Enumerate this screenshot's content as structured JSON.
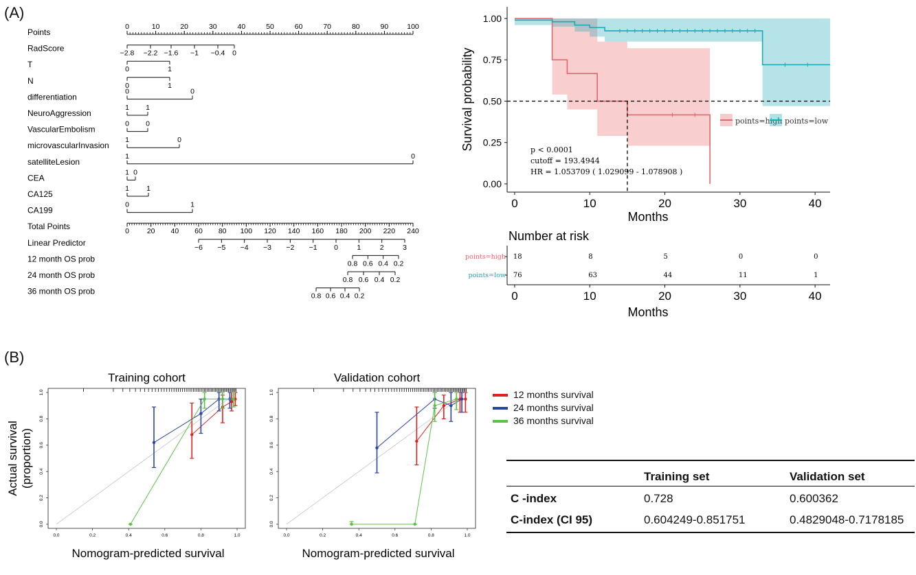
{
  "panels": {
    "a_label": "(A)",
    "b_label": "(B)"
  },
  "nomogram": {
    "rows": [
      {
        "name": "Points",
        "ticks": [
          "0",
          "10",
          "20",
          "30",
          "40",
          "50",
          "60",
          "70",
          "80",
          "90",
          "100"
        ]
      },
      {
        "name": "RadScore",
        "ticks": [
          "−2.8",
          "−2.2",
          "−1.6",
          "−1",
          "−0.4",
          "0"
        ]
      },
      {
        "name": "T",
        "ticks": [
          "0",
          "1"
        ]
      },
      {
        "name": "N",
        "ticks": [
          "0",
          "1"
        ]
      },
      {
        "name": "differentiation",
        "ticks": [
          "0",
          "0"
        ]
      },
      {
        "name": "NeuroAggression",
        "ticks": [
          "1",
          "1"
        ]
      },
      {
        "name": "VascularEmbolism",
        "ticks": [
          "0",
          "0"
        ]
      },
      {
        "name": "microvascularInvasion",
        "ticks": [
          "1",
          "0"
        ]
      },
      {
        "name": "satelliteLesion",
        "ticks": [
          "1",
          "0"
        ]
      },
      {
        "name": "CEA",
        "ticks": [
          "1",
          "0"
        ]
      },
      {
        "name": "CA125",
        "ticks": [
          "1",
          "1"
        ]
      },
      {
        "name": "CA199",
        "ticks": [
          "0",
          "1"
        ]
      },
      {
        "name": "Total Points",
        "ticks": [
          "0",
          "20",
          "40",
          "60",
          "80",
          "100",
          "120",
          "140",
          "160",
          "180",
          "200",
          "220",
          "240"
        ]
      },
      {
        "name": "Linear Predictor",
        "ticks": [
          "−6",
          "−5",
          "−4",
          "−3",
          "−2",
          "−1",
          "0",
          "1",
          "2",
          "3"
        ]
      },
      {
        "name": "12 month OS prob",
        "ticks": [
          "0.8",
          "0.6",
          "0.4",
          "0.2"
        ]
      },
      {
        "name": "24 month OS prob",
        "ticks": [
          "0.8",
          "0.6",
          "0.4",
          "0.2"
        ]
      },
      {
        "name": "36 month OS prob",
        "ticks": [
          "0.8",
          "0.6",
          "0.4",
          "0.2"
        ]
      }
    ]
  },
  "chart_data": [
    {
      "type": "line",
      "subtype": "kaplan-meier",
      "xlabel": "Months",
      "ylabel": "Survival probability",
      "xlim": [
        -1,
        42
      ],
      "ylim": [
        -0.05,
        1.07
      ],
      "xticks": [
        "0",
        "10",
        "20",
        "30",
        "40"
      ],
      "yticks": [
        "0.00",
        "0.25",
        "0.50",
        "0.75",
        "1.00"
      ],
      "legend_position": "right",
      "series": [
        {
          "name": "points=high",
          "color": "#e8666b",
          "x": [
            0,
            5,
            5,
            7,
            7,
            11,
            11,
            15,
            15,
            26,
            26
          ],
          "y": [
            1.0,
            1.0,
            0.75,
            0.75,
            0.667,
            0.667,
            0.5,
            0.5,
            0.417,
            0.417,
            0.0
          ],
          "ci_x": [
            0,
            5,
            5,
            7,
            7,
            11,
            11,
            15,
            15,
            26
          ],
          "ci_lower": [
            1.0,
            1.0,
            0.54,
            0.54,
            0.45,
            0.45,
            0.29,
            0.29,
            0.23,
            0.23
          ],
          "ci_upper": [
            1.0,
            1.0,
            1.0,
            1.0,
            1.0,
            1.0,
            0.86,
            0.86,
            0.82,
            0.82
          ]
        },
        {
          "name": "points=low",
          "color": "#1aa9b7",
          "x": [
            0,
            5,
            5,
            8,
            8,
            10,
            10,
            12,
            12,
            33,
            33,
            42
          ],
          "y": [
            0.99,
            0.99,
            0.98,
            0.98,
            0.96,
            0.96,
            0.945,
            0.945,
            0.925,
            0.925,
            0.72,
            0.72
          ],
          "ci_x": [
            0,
            5,
            5,
            8,
            8,
            10,
            10,
            12,
            12,
            33,
            33,
            42
          ],
          "ci_lower": [
            0.96,
            0.96,
            0.95,
            0.95,
            0.92,
            0.92,
            0.89,
            0.89,
            0.86,
            0.86,
            0.47,
            0.47
          ],
          "ci_upper": [
            1.0,
            1.0,
            1.0,
            1.0,
            1.0,
            1.0,
            1.0,
            1.0,
            1.0,
            1.0,
            1.0,
            1.0
          ]
        }
      ],
      "annotations": [
        "p < 0.0001",
        "cutoff = 193.4944",
        "HR = 1.053709 ( 1.029099 - 1.078908 )"
      ],
      "median_lines": {
        "y": 0.5,
        "x": 15
      }
    },
    {
      "type": "table",
      "title": "Number at risk",
      "xlabel": "Months",
      "times": [
        "0",
        "10",
        "20",
        "30",
        "40"
      ],
      "rows": [
        {
          "name": "points=high",
          "color": "#e8666b",
          "values": [
            "18",
            "8",
            "5",
            "0",
            "0"
          ]
        },
        {
          "name": "points=low",
          "color": "#1aa9b7",
          "values": [
            "76",
            "63",
            "44",
            "11",
            "1"
          ]
        }
      ]
    },
    {
      "type": "line",
      "subtype": "calibration",
      "title": "Training cohort",
      "xlabel": "Nomogram-predicted survival",
      "ylabel": "Actual survival (proportion)",
      "xlim": [
        0,
        1
      ],
      "ylim": [
        0,
        1
      ],
      "ticks": [
        "0.0",
        "0.2",
        "0.4",
        "0.6",
        "0.8",
        "1.0"
      ],
      "series": [
        {
          "name": "12 months survival",
          "color": "#e02020",
          "points": [
            {
              "x": 0.75,
              "y": 0.68,
              "lo": 0.5,
              "hi": 0.92
            },
            {
              "x": 0.92,
              "y": 0.89,
              "lo": 0.77,
              "hi": 0.98
            },
            {
              "x": 0.97,
              "y": 0.93,
              "lo": 0.86,
              "hi": 1.0
            },
            {
              "x": 0.99,
              "y": 0.95,
              "lo": 0.9,
              "hi": 1.0
            }
          ]
        },
        {
          "name": "24 months survival",
          "color": "#2a43a6",
          "points": [
            {
              "x": 0.54,
              "y": 0.62,
              "lo": 0.43,
              "hi": 0.89
            },
            {
              "x": 0.8,
              "y": 0.84,
              "lo": 0.69,
              "hi": 0.95
            },
            {
              "x": 0.9,
              "y": 0.95,
              "lo": 0.86,
              "hi": 1.0
            },
            {
              "x": 0.96,
              "y": 0.95,
              "lo": 0.88,
              "hi": 1.0
            }
          ]
        },
        {
          "name": "36 months survival",
          "color": "#5cc243",
          "points": [
            {
              "x": 0.41,
              "y": 0.0,
              "lo": 0.0,
              "hi": 0.0
            },
            {
              "x": 0.82,
              "y": 0.95,
              "lo": 0.88,
              "hi": 1.0
            },
            {
              "x": 0.92,
              "y": 0.95,
              "lo": 0.88,
              "hi": 1.0
            },
            {
              "x": 0.98,
              "y": 0.95,
              "lo": 0.89,
              "hi": 1.0
            }
          ]
        }
      ]
    },
    {
      "type": "line",
      "subtype": "calibration",
      "title": "Validation cohort",
      "xlabel": "Nomogram-predicted survival",
      "ylabel": "",
      "xlim": [
        0,
        1
      ],
      "ylim": [
        0,
        1
      ],
      "ticks": [
        "0.0",
        "0.2",
        "0.4",
        "0.6",
        "0.8",
        "1.0"
      ],
      "series": [
        {
          "name": "12 months survival",
          "color": "#e02020",
          "points": [
            {
              "x": 0.72,
              "y": 0.63,
              "lo": 0.45,
              "hi": 0.89
            },
            {
              "x": 0.87,
              "y": 0.9,
              "lo": 0.8,
              "hi": 0.98
            },
            {
              "x": 0.96,
              "y": 0.95,
              "lo": 0.85,
              "hi": 1.0
            },
            {
              "x": 0.99,
              "y": 0.95,
              "lo": 0.85,
              "hi": 1.0
            }
          ]
        },
        {
          "name": "24 months survival",
          "color": "#2a43a6",
          "points": [
            {
              "x": 0.5,
              "y": 0.58,
              "lo": 0.39,
              "hi": 0.85
            },
            {
              "x": 0.82,
              "y": 0.95,
              "lo": 0.88,
              "hi": 1.0
            },
            {
              "x": 0.91,
              "y": 0.9,
              "lo": 0.78,
              "hi": 1.0
            },
            {
              "x": 0.97,
              "y": 0.95,
              "lo": 0.85,
              "hi": 1.0
            }
          ]
        },
        {
          "name": "36 months survival",
          "color": "#5cc243",
          "points": [
            {
              "x": 0.36,
              "y": 0.0,
              "lo": 0.0,
              "hi": 0.02
            },
            {
              "x": 0.71,
              "y": 0.0,
              "lo": 0.0,
              "hi": 0.0
            },
            {
              "x": 0.82,
              "y": 0.9,
              "lo": 0.78,
              "hi": 1.0
            },
            {
              "x": 0.94,
              "y": 0.95,
              "lo": 0.87,
              "hi": 1.0
            }
          ]
        }
      ]
    }
  ],
  "calib_legend": [
    "12 months survival",
    "24 months survival",
    "36 months survival"
  ],
  "cindex_table": {
    "header": [
      "",
      "Training set",
      "Validation set"
    ],
    "rows": [
      [
        "C -index",
        "0.728",
        "0.600362"
      ],
      [
        "C-index (CI 95)",
        "0.604249-0.851751",
        "0.4829048-0.7178185"
      ]
    ]
  },
  "colors": {
    "high": "#e8666b",
    "low": "#1aa9b7",
    "red": "#e02020",
    "blue": "#2a43a6",
    "green": "#5cc243"
  }
}
